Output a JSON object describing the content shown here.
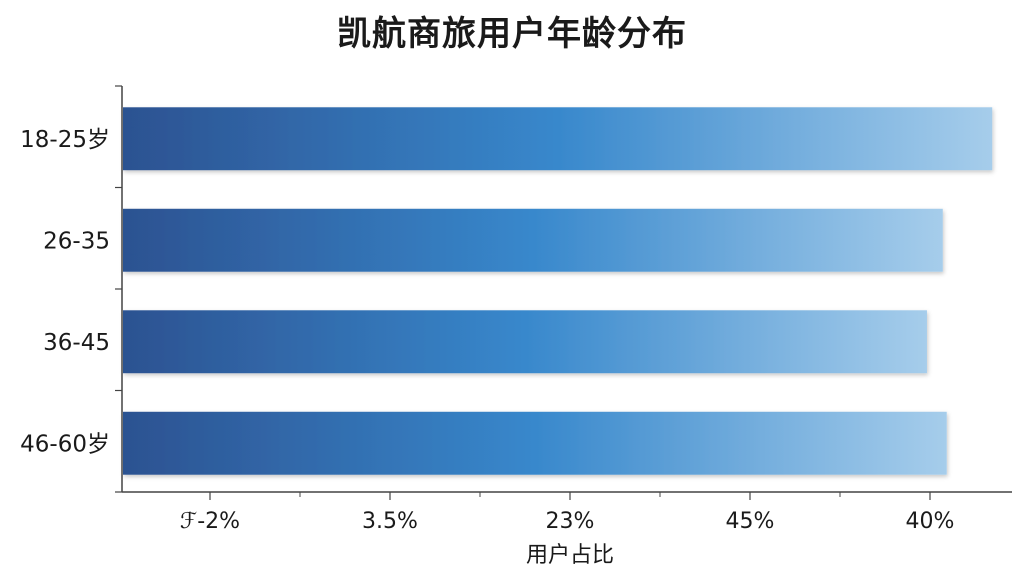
{
  "chart_data": {
    "type": "bar",
    "orientation": "horizontal",
    "title": "凯航商旅用户年龄分布",
    "xlabel": "用户占比",
    "ylabel": "",
    "categories": [
      "18-25岁",
      "26-35",
      "36-45",
      "46-60岁"
    ],
    "values": [
      41,
      38.5,
      37.7,
      38.7
    ],
    "xlim": [
      -3,
      42
    ],
    "x_tick_labels": [
      "ℱ-2%",
      "3.5%",
      "23%",
      "45%",
      "40%"
    ],
    "grid": false,
    "legend": "none",
    "colors": {
      "bar_start": "#2c5291",
      "bar_mid": "#3888cc",
      "bar_end": "#a6cdeb",
      "axis": "#444444"
    }
  }
}
